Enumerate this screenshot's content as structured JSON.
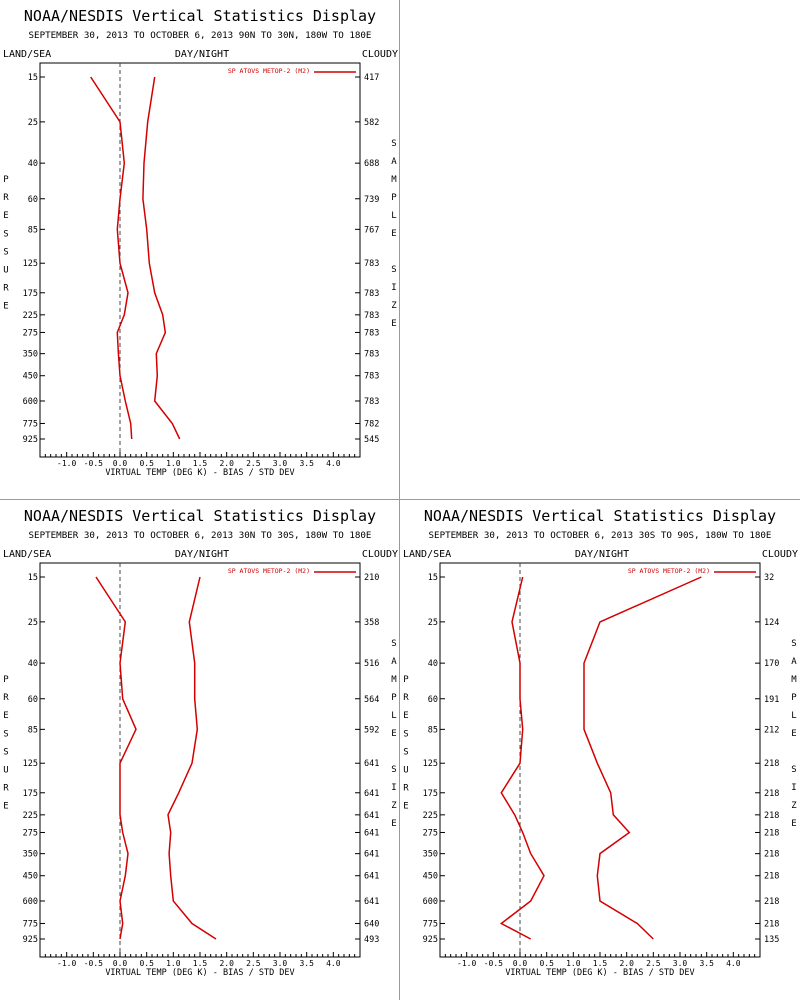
{
  "colors": {
    "series": "#d40000",
    "axis": "#000000",
    "zero_line": "#444444"
  },
  "chart_data": [
    {
      "type": "line",
      "panel": "top-left",
      "title": "NOAA/NESDIS Vertical Statistics Display",
      "subtitle": "SEPTEMBER 30, 2013 TO OCTOBER 6, 2013 90N TO 30N, 180W TO 180E",
      "left_header": "LAND/SEA",
      "center_header": "DAY/NIGHT",
      "right_header": "CLOUDY",
      "ylabel": "PRESSURE",
      "y2label": "SAMPLE SIZE",
      "xlabel": "VIRTUAL TEMP (DEG K) - BIAS / STD DEV",
      "xlim": [
        -1.5,
        4.5
      ],
      "x_ticks": [
        "-1.0",
        "-0.5",
        "0.0",
        "0.5",
        "1.0",
        "1.5",
        "2.0",
        "2.5",
        "3.0",
        "3.5",
        "4.0"
      ],
      "pressure_levels": [
        15,
        25,
        40,
        60,
        85,
        125,
        175,
        225,
        275,
        350,
        450,
        600,
        775,
        925
      ],
      "sample_size": [
        417,
        582,
        688,
        739,
        767,
        783,
        783,
        783,
        783,
        783,
        783,
        783,
        782,
        545
      ],
      "legend_label": "SP ATOVS METOP-2 (M2)",
      "series": [
        {
          "name": "bias",
          "values": [
            -0.55,
            0.0,
            0.08,
            0.0,
            -0.05,
            0.0,
            0.15,
            0.08,
            -0.05,
            -0.03,
            0.0,
            0.1,
            0.2,
            0.22
          ]
        },
        {
          "name": "std dev",
          "values": [
            0.65,
            0.52,
            0.45,
            0.43,
            0.5,
            0.55,
            0.65,
            0.8,
            0.85,
            0.68,
            0.7,
            0.65,
            0.98,
            1.12
          ]
        }
      ]
    },
    {
      "type": "line",
      "panel": "bottom-left",
      "title": "NOAA/NESDIS Vertical Statistics Display",
      "subtitle": "SEPTEMBER 30, 2013 TO OCTOBER 6, 2013 30N TO 30S, 180W TO 180E",
      "left_header": "LAND/SEA",
      "center_header": "DAY/NIGHT",
      "right_header": "CLOUDY",
      "ylabel": "PRESSURE",
      "y2label": "SAMPLE SIZE",
      "xlabel": "VIRTUAL TEMP (DEG K) - BIAS / STD DEV",
      "xlim": [
        -1.5,
        4.5
      ],
      "x_ticks": [
        "-1.0",
        "-0.5",
        "0.0",
        "0.5",
        "1.0",
        "1.5",
        "2.0",
        "2.5",
        "3.0",
        "3.5",
        "4.0"
      ],
      "pressure_levels": [
        15,
        25,
        40,
        60,
        85,
        125,
        175,
        225,
        275,
        350,
        450,
        600,
        775,
        925
      ],
      "sample_size": [
        210,
        358,
        516,
        564,
        592,
        641,
        641,
        641,
        641,
        641,
        641,
        641,
        640,
        493
      ],
      "legend_label": "SP ATOVS METOP-2 (M2)",
      "series": [
        {
          "name": "bias",
          "values": [
            -0.45,
            0.1,
            0.0,
            0.05,
            0.3,
            0.0,
            0.0,
            0.0,
            0.05,
            0.15,
            0.1,
            0.0,
            0.05,
            0.0
          ]
        },
        {
          "name": "std dev",
          "values": [
            1.5,
            1.3,
            1.4,
            1.4,
            1.45,
            1.35,
            1.1,
            0.9,
            0.95,
            0.92,
            0.95,
            1.0,
            1.35,
            1.8
          ]
        }
      ]
    },
    {
      "type": "line",
      "panel": "bottom-right",
      "title": "NOAA/NESDIS Vertical Statistics Display",
      "subtitle": "SEPTEMBER 30, 2013 TO OCTOBER 6, 2013 30S TO 90S, 180W TO 180E",
      "left_header": "LAND/SEA",
      "center_header": "DAY/NIGHT",
      "right_header": "CLOUDY",
      "ylabel": "PRESSURE",
      "y2label": "SAMPLE SIZE",
      "xlabel": "VIRTUAL TEMP (DEG K) - BIAS / STD DEV",
      "xlim": [
        -1.5,
        4.5
      ],
      "x_ticks": [
        "-1.0",
        "-0.5",
        "0.0",
        "0.5",
        "1.0",
        "1.5",
        "2.0",
        "2.5",
        "3.0",
        "3.5",
        "4.0"
      ],
      "pressure_levels": [
        15,
        25,
        40,
        60,
        85,
        125,
        175,
        225,
        275,
        350,
        450,
        600,
        775,
        925
      ],
      "sample_size": [
        32,
        124,
        170,
        191,
        212,
        218,
        218,
        218,
        218,
        218,
        218,
        218,
        218,
        135
      ],
      "legend_label": "SP ATOVS METOP-2 (M2)",
      "series": [
        {
          "name": "bias",
          "values": [
            0.05,
            -0.15,
            0.0,
            0.0,
            0.05,
            0.0,
            -0.35,
            -0.1,
            0.05,
            0.2,
            0.45,
            0.2,
            -0.35,
            0.2
          ]
        },
        {
          "name": "std dev",
          "values": [
            3.4,
            1.5,
            1.2,
            1.2,
            1.2,
            1.45,
            1.7,
            1.75,
            2.05,
            1.5,
            1.45,
            1.5,
            2.2,
            2.5
          ]
        }
      ]
    }
  ]
}
